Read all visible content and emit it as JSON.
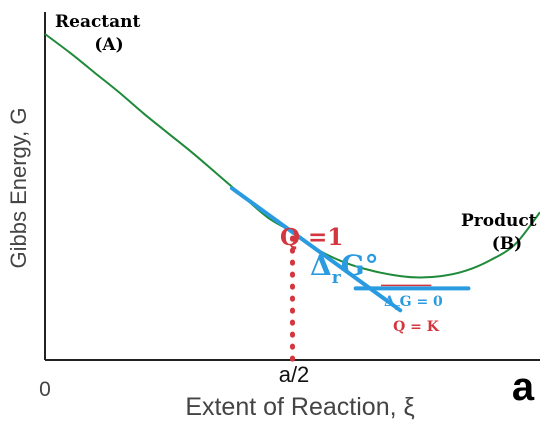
{
  "chart_data": {
    "type": "line",
    "title": "",
    "xlabel": "Extent of Reaction, ξ",
    "ylabel": "Gibbs Energy, G",
    "x_ticks": [
      {
        "x": 0,
        "label": "0"
      },
      {
        "x": 0.5,
        "label": "a/2"
      }
    ],
    "xlim": [
      0,
      1
    ],
    "ylim": [
      0,
      1
    ],
    "series": [
      {
        "points": [
          [
            0.0,
            1.0
          ],
          [
            0.05,
            0.93
          ],
          [
            0.1,
            0.855
          ],
          [
            0.15,
            0.78
          ],
          [
            0.2,
            0.7
          ],
          [
            0.25,
            0.625
          ],
          [
            0.3,
            0.55
          ],
          [
            0.35,
            0.47
          ],
          [
            0.4,
            0.39
          ],
          [
            0.45,
            0.31
          ],
          [
            0.5,
            0.255
          ],
          [
            0.55,
            0.19
          ],
          [
            0.6,
            0.145
          ],
          [
            0.65,
            0.115
          ],
          [
            0.7,
            0.095
          ],
          [
            0.75,
            0.085
          ],
          [
            0.8,
            0.09
          ],
          [
            0.85,
            0.11
          ],
          [
            0.9,
            0.15
          ],
          [
            0.95,
            0.21
          ],
          [
            1.0,
            0.33
          ]
        ]
      }
    ],
    "annotations": {
      "reactant": "Reactant",
      "reactant_sub": "(A)",
      "product": "Product",
      "product_sub": "(B)",
      "q_one": "Q =1",
      "delta_g_std": {
        "main": "Δ",
        "sub": "r",
        "tail": "G°"
      },
      "equilibrium_top": {
        "main": "Δ",
        "sub": "r",
        "tail": "G = 0"
      },
      "equilibrium_bottom": "Q = K",
      "panel_letter": "a"
    },
    "tangent_std": {
      "x": 0.5,
      "y": 0.255,
      "slope": -1.35,
      "half_width": 0.17
    },
    "equilibrium": {
      "x": 0.75,
      "y": 0.085,
      "half_width": 0.17
    },
    "colors": {
      "curve": "#1f8a3a",
      "tangent": "#2a9be0",
      "accent_red": "#d3363f",
      "axis": "#222222",
      "text": "#000000"
    }
  }
}
